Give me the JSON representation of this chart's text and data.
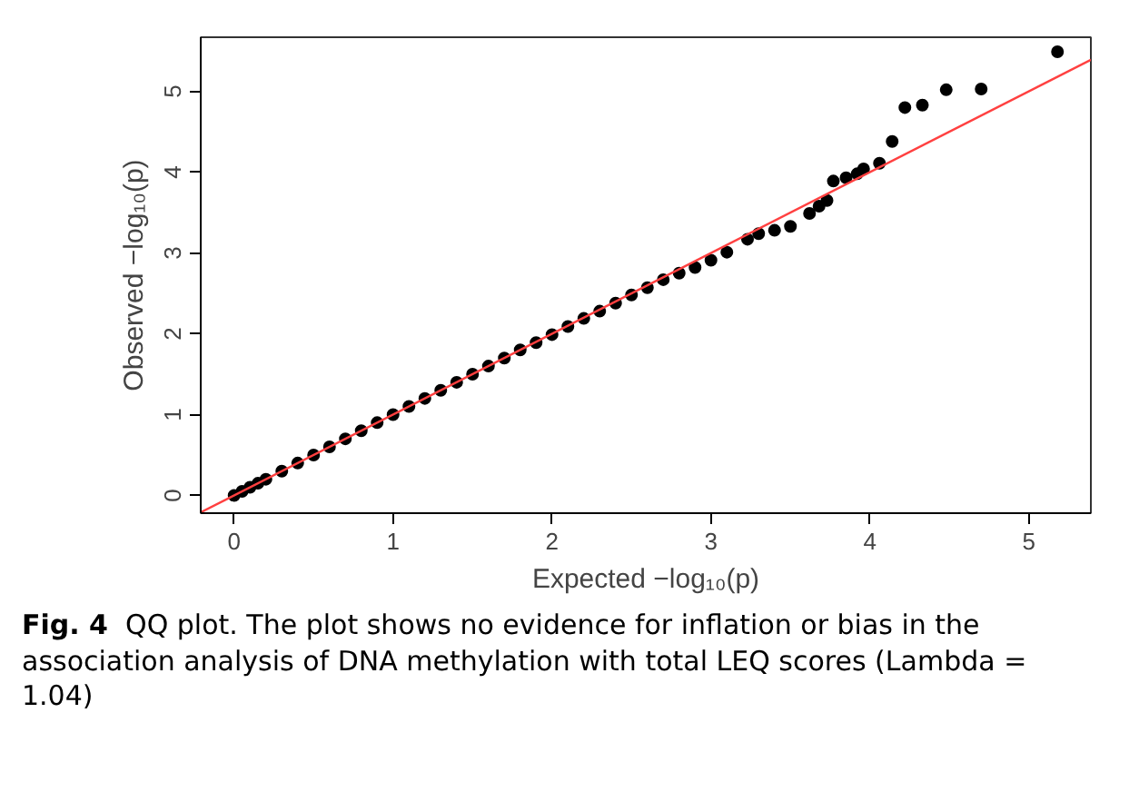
{
  "chart_data": {
    "type": "scatter",
    "xlabel": "Expected −log₁₀(p)",
    "ylabel": "Observed −log₁₀(p)",
    "xlim": [
      -0.21,
      5.39
    ],
    "ylim": [
      -0.22,
      5.67
    ],
    "xticks": [
      0,
      1,
      2,
      3,
      4,
      5
    ],
    "yticks": [
      0,
      1,
      2,
      3,
      4,
      5
    ],
    "grid": false,
    "marker": "circle",
    "series": [
      {
        "color": "#000000",
        "x": [
          0.0,
          0.05,
          0.1,
          0.15,
          0.2,
          0.3,
          0.4,
          0.5,
          0.6,
          0.7,
          0.8,
          0.9,
          1.0,
          1.1,
          1.2,
          1.3,
          1.4,
          1.5,
          1.6,
          1.7,
          1.8,
          1.9,
          2.0,
          2.1,
          2.2,
          2.3,
          2.4,
          2.5,
          2.6,
          2.7,
          2.8,
          2.9,
          3.0,
          3.1,
          3.23,
          3.3,
          3.4,
          3.5,
          3.62,
          3.68,
          3.73,
          3.77,
          3.85,
          3.92,
          3.96,
          4.06,
          4.14,
          4.22,
          4.33,
          4.48,
          4.7,
          5.18
        ],
        "values": [
          0.0,
          0.05,
          0.1,
          0.15,
          0.2,
          0.3,
          0.4,
          0.5,
          0.6,
          0.7,
          0.8,
          0.9,
          1.0,
          1.1,
          1.2,
          1.3,
          1.4,
          1.5,
          1.6,
          1.7,
          1.8,
          1.89,
          1.99,
          2.09,
          2.19,
          2.28,
          2.38,
          2.48,
          2.57,
          2.67,
          2.75,
          2.82,
          2.91,
          3.01,
          3.17,
          3.24,
          3.28,
          3.33,
          3.49,
          3.58,
          3.65,
          3.89,
          3.93,
          3.98,
          4.04,
          4.11,
          4.38,
          4.8,
          4.83,
          5.02,
          5.03,
          5.49
        ]
      },
      {
        "type": "line",
        "marker": "none",
        "color": "#ff4040",
        "x": [
          -0.21,
          5.39
        ],
        "values": [
          -0.21,
          5.39
        ]
      }
    ],
    "annotations": [
      "Fig. 4",
      "QQ plot. The plot shows no evidence for inflation or bias in the association analysis of DNA methylation with total LEQ scores (Lambda = 1.04)"
    ]
  }
}
